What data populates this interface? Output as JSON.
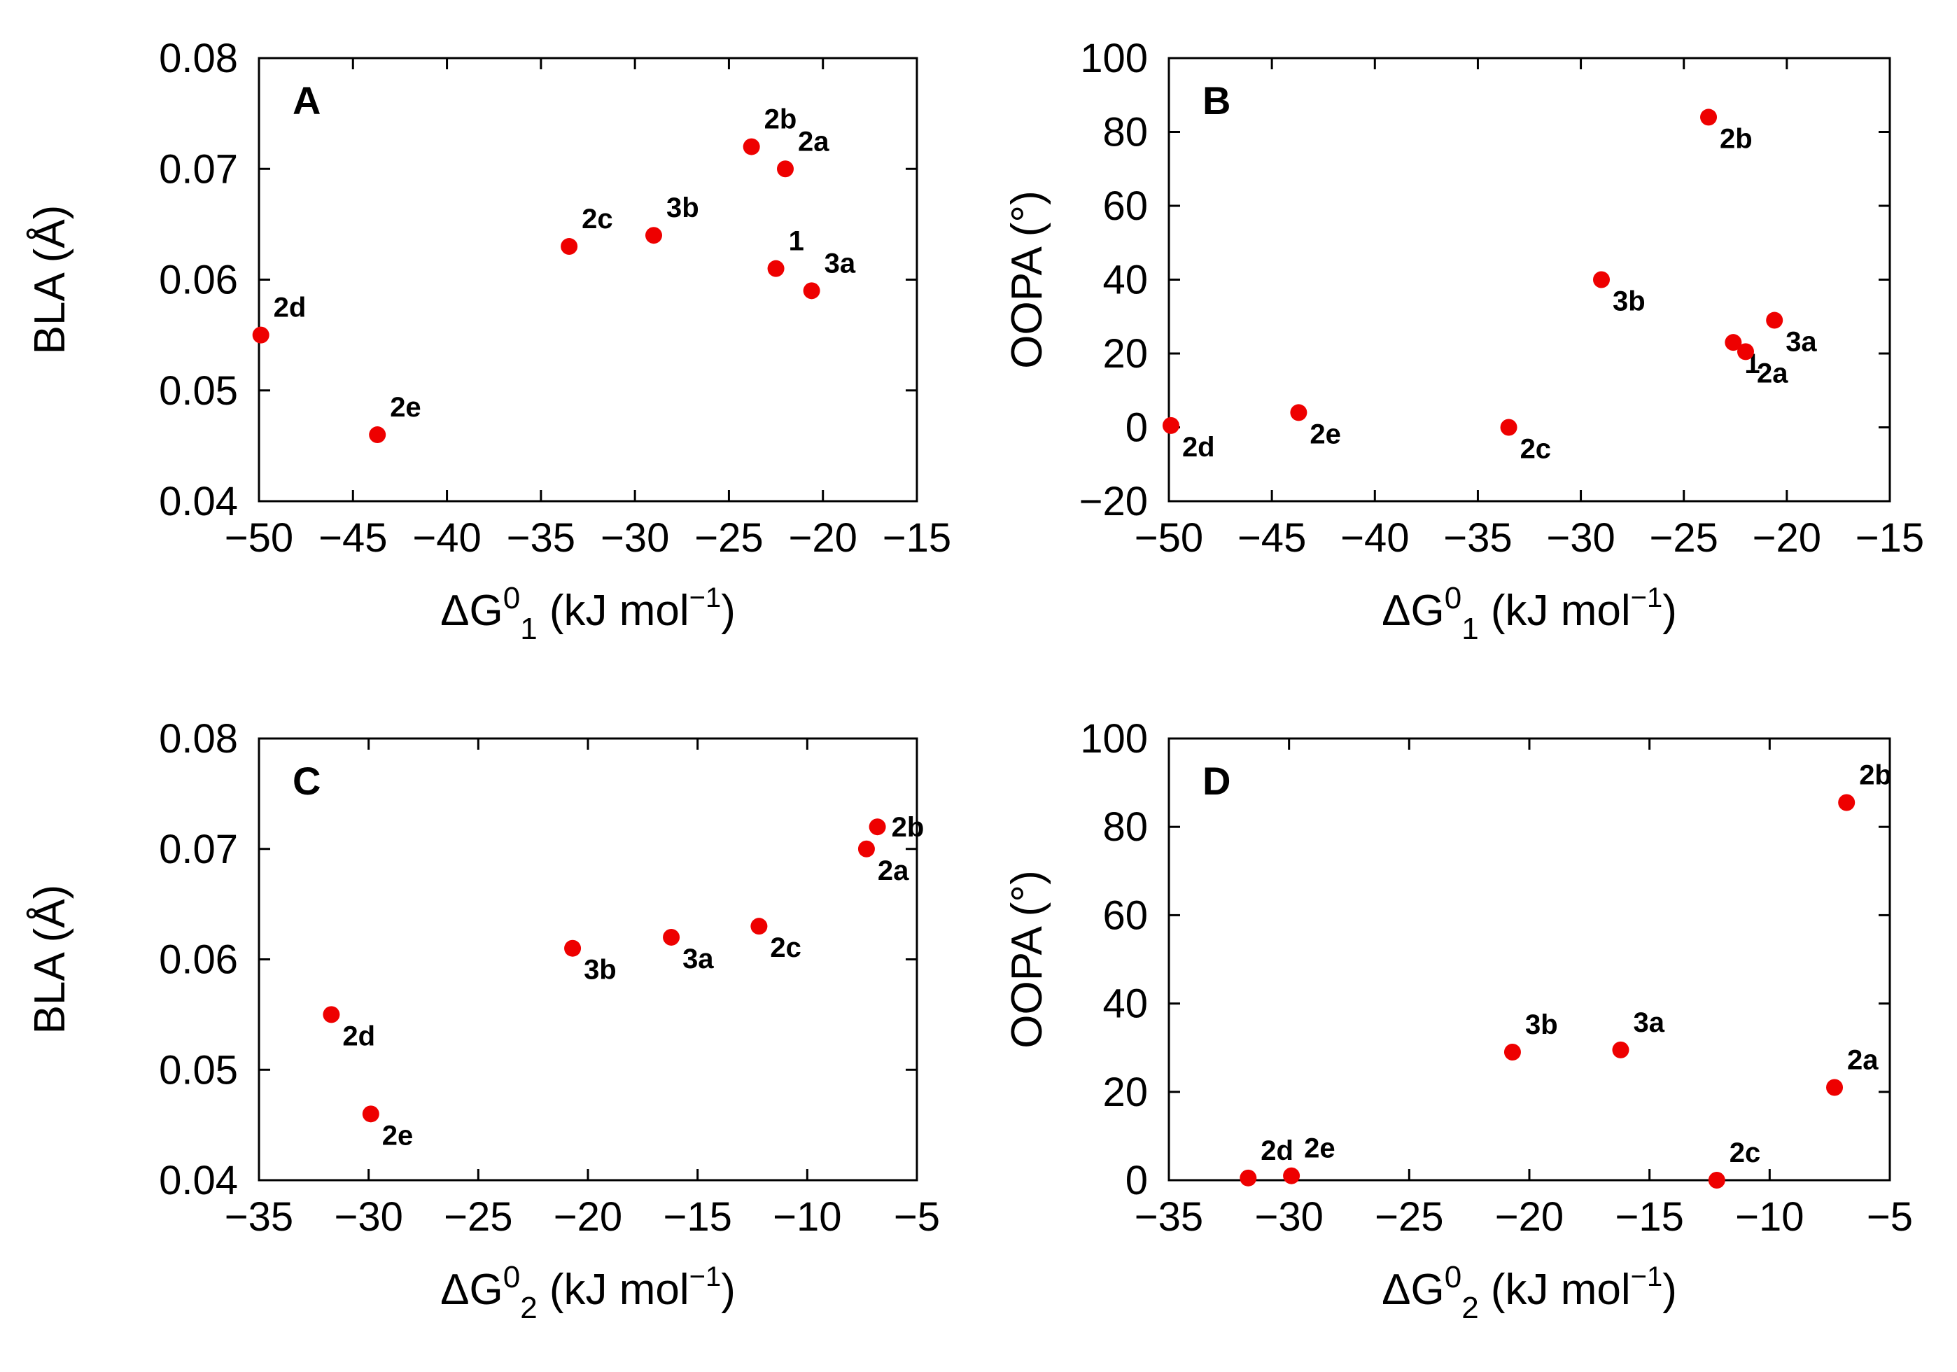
{
  "figure": {
    "marker_color": "#ee0000",
    "panels": [
      {
        "letter": "A",
        "xlabel": {
          "pre": "ΔG",
          "sup": "0",
          "sub": "1",
          "post": " (kJ mol",
          "sup2": "−1",
          "end": ")"
        },
        "ylabel": "BLA (Å)",
        "chart_data": {
          "type": "scatter",
          "title": "A",
          "xlim": [
            -50,
            -15
          ],
          "ylim": [
            0.04,
            0.08
          ],
          "xticks": [
            -50,
            -45,
            -40,
            -35,
            -30,
            -25,
            -20,
            -15
          ],
          "yticks": [
            0.04,
            0.05,
            0.06,
            0.07,
            0.08
          ],
          "xtick_labels": [
            "−50",
            "−45",
            "−40",
            "−35",
            "−30",
            "−25",
            "−20",
            "−15"
          ],
          "ytick_labels": [
            "0.04",
            "0.05",
            "0.06",
            "0.07",
            "0.08"
          ],
          "points": [
            {
              "label": "2d",
              "x": -49.9,
              "y": 0.055,
              "label_pos": "ur"
            },
            {
              "label": "2e",
              "x": -43.7,
              "y": 0.046,
              "label_pos": "ur"
            },
            {
              "label": "2c",
              "x": -33.5,
              "y": 0.063,
              "label_pos": "ur"
            },
            {
              "label": "3b",
              "x": -29.0,
              "y": 0.064,
              "label_pos": "ur"
            },
            {
              "label": "2b",
              "x": -23.8,
              "y": 0.072,
              "label_pos": "ur"
            },
            {
              "label": "2a",
              "x": -22.0,
              "y": 0.07,
              "label_pos": "ur"
            },
            {
              "label": "1",
              "x": -22.5,
              "y": 0.061,
              "label_pos": "ur"
            },
            {
              "label": "3a",
              "x": -20.6,
              "y": 0.059,
              "label_pos": "ur"
            }
          ]
        }
      },
      {
        "letter": "B",
        "xlabel": {
          "pre": "ΔG",
          "sup": "0",
          "sub": "1",
          "post": " (kJ mol",
          "sup2": "−1",
          "end": ")"
        },
        "ylabel": "OOPA (°)",
        "chart_data": {
          "type": "scatter",
          "title": "B",
          "xlim": [
            -50,
            -15
          ],
          "ylim": [
            -20,
            100
          ],
          "xticks": [
            -50,
            -45,
            -40,
            -35,
            -30,
            -25,
            -20,
            -15
          ],
          "yticks": [
            -20,
            0,
            20,
            40,
            60,
            80,
            100
          ],
          "xtick_labels": [
            "−50",
            "−45",
            "−40",
            "−35",
            "−30",
            "−25",
            "−20",
            "−15"
          ],
          "ytick_labels": [
            "−20",
            "0",
            "20",
            "40",
            "60",
            "80",
            "100"
          ],
          "points": [
            {
              "label": "2d",
              "x": -49.9,
              "y": 0.5,
              "label_pos": "lr"
            },
            {
              "label": "2e",
              "x": -43.7,
              "y": 4,
              "label_pos": "lr"
            },
            {
              "label": "2c",
              "x": -33.5,
              "y": 0,
              "label_pos": "lr"
            },
            {
              "label": "3b",
              "x": -29.0,
              "y": 40,
              "label_pos": "lr"
            },
            {
              "label": "2b",
              "x": -23.8,
              "y": 84,
              "label_pos": "lr"
            },
            {
              "label": "1",
              "x": -22.6,
              "y": 23,
              "label_pos": "lr"
            },
            {
              "label": "2a",
              "x": -22.0,
              "y": 20.5,
              "label_pos": "lr"
            },
            {
              "label": "3a",
              "x": -20.6,
              "y": 29,
              "label_pos": "lr"
            }
          ]
        }
      },
      {
        "letter": "C",
        "xlabel": {
          "pre": "ΔG",
          "sup": "0",
          "sub": "2",
          "post": " (kJ mol",
          "sup2": "−1",
          "end": ")"
        },
        "ylabel": "BLA (Å)",
        "chart_data": {
          "type": "scatter",
          "title": "C",
          "xlim": [
            -35,
            -5
          ],
          "ylim": [
            0.04,
            0.08
          ],
          "xticks": [
            -35,
            -30,
            -25,
            -20,
            -15,
            -10,
            -5
          ],
          "yticks": [
            0.04,
            0.05,
            0.06,
            0.07,
            0.08
          ],
          "xtick_labels": [
            "−35",
            "−30",
            "−25",
            "−20",
            "−15",
            "−10",
            "−5"
          ],
          "ytick_labels": [
            "0.04",
            "0.05",
            "0.06",
            "0.07",
            "0.08"
          ],
          "points": [
            {
              "label": "2d",
              "x": -31.7,
              "y": 0.055,
              "label_pos": "lr"
            },
            {
              "label": "2e",
              "x": -29.9,
              "y": 0.046,
              "label_pos": "lr"
            },
            {
              "label": "3b",
              "x": -20.7,
              "y": 0.061,
              "label_pos": "lr"
            },
            {
              "label": "3a",
              "x": -16.2,
              "y": 0.062,
              "label_pos": "lr"
            },
            {
              "label": "2c",
              "x": -12.2,
              "y": 0.063,
              "label_pos": "lr"
            },
            {
              "label": "2b",
              "x": -6.8,
              "y": 0.072,
              "label_pos": "r"
            },
            {
              "label": "2a",
              "x": -7.3,
              "y": 0.07,
              "label_pos": "lr"
            }
          ]
        }
      },
      {
        "letter": "D",
        "xlabel": {
          "pre": "ΔG",
          "sup": "0",
          "sub": "2",
          "post": " (kJ mol",
          "sup2": "−1",
          "end": ")"
        },
        "ylabel": "OOPA (°)",
        "chart_data": {
          "type": "scatter",
          "title": "D",
          "xlim": [
            -35,
            -5
          ],
          "ylim": [
            0,
            100
          ],
          "xticks": [
            -35,
            -30,
            -25,
            -20,
            -15,
            -10,
            -5
          ],
          "yticks": [
            0,
            20,
            40,
            60,
            80,
            100
          ],
          "xtick_labels": [
            "−35",
            "−30",
            "−25",
            "−20",
            "−15",
            "−10",
            "−5"
          ],
          "ytick_labels": [
            "0",
            "20",
            "40",
            "60",
            "80",
            "100"
          ],
          "points": [
            {
              "label": "2d",
              "x": -31.7,
              "y": 0.5,
              "label_pos": "ur"
            },
            {
              "label": "2e",
              "x": -29.9,
              "y": 1,
              "label_pos": "ur"
            },
            {
              "label": "3b",
              "x": -20.7,
              "y": 29,
              "label_pos": "ur"
            },
            {
              "label": "3a",
              "x": -16.2,
              "y": 29.5,
              "label_pos": "ur"
            },
            {
              "label": "2c",
              "x": -12.2,
              "y": 0,
              "label_pos": "ur"
            },
            {
              "label": "2a",
              "x": -7.3,
              "y": 21,
              "label_pos": "ur"
            },
            {
              "label": "2b",
              "x": -6.8,
              "y": 85.5,
              "label_pos": "ur"
            }
          ]
        }
      }
    ]
  }
}
